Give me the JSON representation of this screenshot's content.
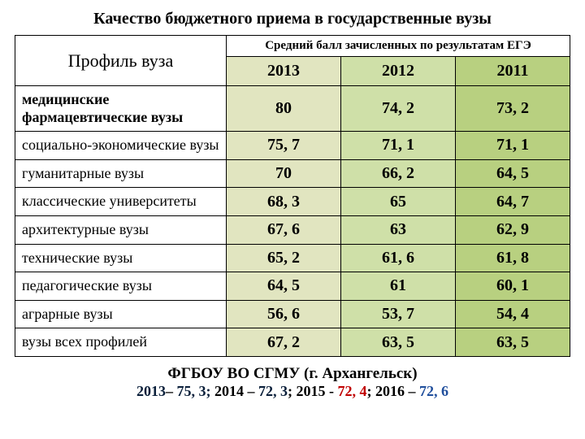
{
  "title": "Качество бюджетного приема в государственные вузы",
  "table": {
    "profile_header": "Профиль вуза",
    "score_header": "Средний балл зачисленных по результатам ЕГЭ",
    "years": [
      "2013",
      "2012",
      "2011"
    ],
    "col_colors": [
      "#e1e5c0",
      "#cfe0a8",
      "#b8d080"
    ],
    "rows": [
      {
        "label": "медицинские фармацевтические вузы",
        "bold": true,
        "values": [
          "80",
          "74, 2",
          "73, 2"
        ]
      },
      {
        "label": "социально-экономические вузы",
        "bold": false,
        "values": [
          "75, 7",
          "71, 1",
          "71, 1"
        ]
      },
      {
        "label": "гуманитарные вузы",
        "bold": false,
        "values": [
          "70",
          "66, 2",
          "64, 5"
        ]
      },
      {
        "label": "классические университеты",
        "bold": false,
        "values": [
          "68, 3",
          "65",
          "64, 7"
        ]
      },
      {
        "label": "архитектурные вузы",
        "bold": false,
        "values": [
          "67, 6",
          "63",
          "62, 9"
        ]
      },
      {
        "label": "технические вузы",
        "bold": false,
        "values": [
          "65, 2",
          "61, 6",
          "61, 8"
        ]
      },
      {
        "label": "педагогические вузы",
        "bold": false,
        "values": [
          "64, 5",
          "61",
          "60, 1"
        ]
      },
      {
        "label": "аграрные вузы",
        "bold": false,
        "values": [
          "56, 6",
          "53, 7",
          "54, 4"
        ]
      },
      {
        "label": "вузы всех профилей",
        "bold": false,
        "values": [
          "67, 2",
          "63, 5",
          "63, 5"
        ]
      }
    ]
  },
  "footer": {
    "line1": "ФГБОУ ВО СГМУ (г. Архангельск)",
    "parts": [
      {
        "text": "2013",
        "cls": "f-dark"
      },
      {
        "text": "– ",
        "cls": ""
      },
      {
        "text": "75, 3;",
        "cls": "f-dark"
      },
      {
        "text": "  2014 – ",
        "cls": ""
      },
      {
        "text": "72, 3",
        "cls": "f-dark"
      },
      {
        "text": ";  2015 - ",
        "cls": ""
      },
      {
        "text": "72, 4",
        "cls": "f-red"
      },
      {
        "text": ";  2016 – ",
        "cls": ""
      },
      {
        "text": "72, 6",
        "cls": "f-blue"
      }
    ]
  }
}
